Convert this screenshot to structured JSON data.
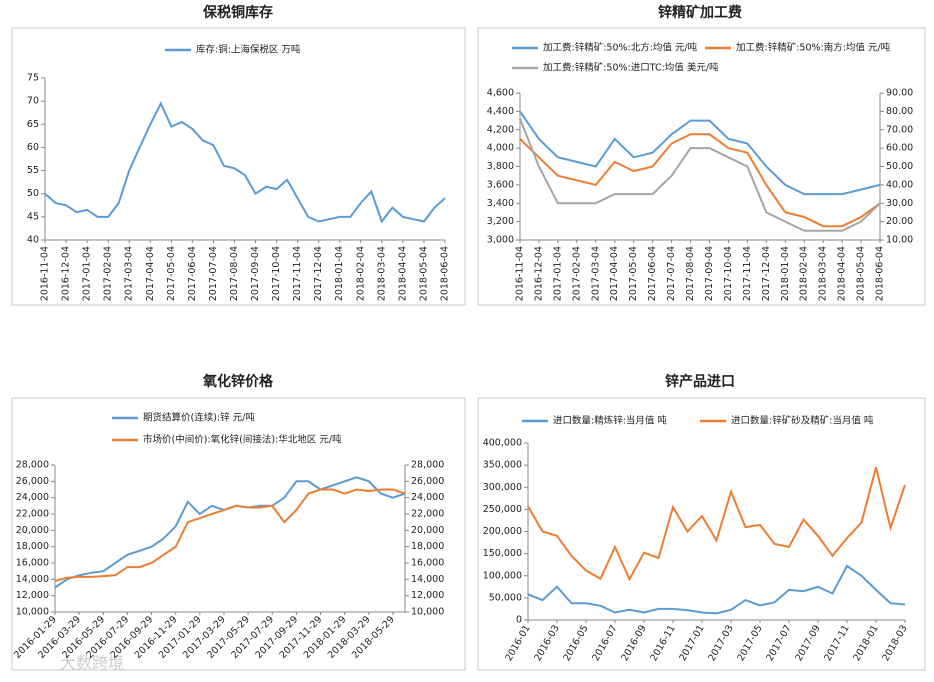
{
  "chart_data": [
    {
      "type": "line",
      "title": "保税铜库存",
      "categories": [
        "2016-11-04",
        null,
        "2016-12-04",
        null,
        "2017-01-04",
        null,
        "2017-02-04",
        null,
        "2017-03-04",
        null,
        "2017-04-04",
        null,
        "2017-05-04",
        null,
        "2017-06-04",
        null,
        "2017-07-04",
        null,
        "2017-08-04",
        null,
        "2017-09-04",
        null,
        "2017-10-04",
        null,
        "2017-11-04",
        null,
        "2017-12-04",
        null,
        "2018-01-04",
        null,
        "2018-02-04",
        null,
        "2018-03-04",
        null,
        "2018-04-04",
        null,
        "2018-05-04",
        null,
        "2018-06-04"
      ],
      "series": [
        {
          "name": "库存:铜:上海保税区 万吨",
          "color": "#5b9bd5",
          "values": [
            50,
            48,
            47.5,
            46,
            46.5,
            45,
            45,
            48,
            55,
            60,
            65,
            69.5,
            64.5,
            65.5,
            64,
            61.5,
            60.5,
            56,
            55.5,
            54,
            50,
            51.5,
            51,
            53,
            49,
            45,
            44,
            44.5,
            45,
            45,
            48,
            50.5,
            44,
            47,
            45,
            44.5,
            44,
            47,
            49
          ]
        }
      ],
      "ylim": [
        40,
        75
      ],
      "yticks": [
        40,
        45,
        50,
        55,
        60,
        65,
        70,
        75
      ]
    },
    {
      "type": "line",
      "title": "锌精矿加工费",
      "categories": [
        "2016-11-04",
        "2016-12-04",
        "2017-01-04",
        "2017-02-04",
        "2017-03-04",
        "2017-04-04",
        "2017-05-04",
        "2017-06-04",
        "2017-07-04",
        "2017-08-04",
        "2017-09-04",
        "2017-10-04",
        "2017-11-04",
        "2017-12-04",
        "2018-01-04",
        "2018-02-04",
        "2018-03-04",
        "2018-04-04",
        "2018-05-04",
        "2018-06-04"
      ],
      "series": [
        {
          "name": "加工费:锌精矿:50%:北方:均值 元/吨",
          "color": "#5b9bd5",
          "values": [
            4400,
            4100,
            3900,
            3850,
            3800,
            4100,
            3900,
            3950,
            4150,
            4300,
            4300,
            4100,
            4050,
            3800,
            3600,
            3500,
            3500,
            3500,
            3550,
            3600
          ]
        },
        {
          "name": "加工费:锌精矿:50%:南方:均值 元/吨",
          "color": "#ed7d31",
          "values": [
            4100,
            3900,
            3700,
            3650,
            3600,
            3850,
            3750,
            3800,
            4050,
            4150,
            4150,
            4000,
            3950,
            3600,
            3300,
            3250,
            3150,
            3150,
            3250,
            3400
          ]
        },
        {
          "name": "加工费:锌精矿:50%:进口TC:均值 美元/吨",
          "color": "#a5a5a5",
          "axis": "y2",
          "values": [
            76,
            50,
            30,
            30,
            30,
            35,
            35,
            35,
            45,
            60,
            60,
            55,
            50,
            25,
            20,
            15,
            15,
            15,
            20,
            30
          ]
        }
      ],
      "ylim": [
        3000,
        4600
      ],
      "yticks": [
        {
          "value": 3000,
          "label": "3,000"
        },
        {
          "value": 3200,
          "label": "3,200"
        },
        {
          "value": 3400,
          "label": "3,400"
        },
        {
          "value": 3600,
          "label": "3,600"
        },
        {
          "value": 3800,
          "label": "3,800"
        },
        {
          "value": 4000,
          "label": "4,000"
        },
        {
          "value": 4200,
          "label": "4,200"
        },
        {
          "value": 4400,
          "label": "4,400"
        },
        {
          "value": 4600,
          "label": "4,600"
        }
      ],
      "y2lim": [
        10,
        90
      ],
      "y2ticks": [
        {
          "value": 10,
          "label": "10.00"
        },
        {
          "value": 20,
          "label": "20.00"
        },
        {
          "value": 30,
          "label": "30.00"
        },
        {
          "value": 40,
          "label": "40.00"
        },
        {
          "value": 50,
          "label": "50.00"
        },
        {
          "value": 60,
          "label": "60.00"
        },
        {
          "value": 70,
          "label": "70.00"
        },
        {
          "value": 80,
          "label": "80.00"
        },
        {
          "value": 90,
          "label": "90.00"
        }
      ]
    },
    {
      "type": "line",
      "title": "氧化锌价格",
      "categories": [
        "2016-01-29",
        null,
        "2016-03-29",
        null,
        "2016-05-29",
        null,
        "2016-07-29",
        null,
        "2016-09-29",
        null,
        "2016-11-29",
        null,
        "2017-01-29",
        null,
        "2017-03-29",
        null,
        "2017-05-29",
        null,
        "2017-07-29",
        null,
        "2017-09-29",
        null,
        "2017-11-29",
        null,
        "2018-01-29",
        null,
        "2018-03-29",
        null,
        "2018-05-29",
        null
      ],
      "series": [
        {
          "name": "期货结算价(连续):锌 元/吨",
          "color": "#5b9bd5",
          "values": [
            13000,
            14000,
            14500,
            14800,
            15000,
            16000,
            17000,
            17500,
            18000,
            19000,
            20500,
            23500,
            22000,
            23000,
            22500,
            23000,
            22800,
            23000,
            23000,
            24000,
            26000,
            26000,
            25000,
            25500,
            26000,
            26500,
            26000,
            24500,
            24000,
            24500
          ]
        },
        {
          "name": "市场价(中间价):氧化锌(间接法):华北地区 元/吨",
          "color": "#ed7d31",
          "values": [
            13800,
            14200,
            14300,
            14300,
            14400,
            14500,
            15500,
            15500,
            16000,
            17000,
            18000,
            21000,
            21500,
            22000,
            22500,
            23000,
            22800,
            22800,
            23000,
            21000,
            22500,
            24500,
            25000,
            25000,
            24500,
            25000,
            24800,
            25000,
            25000,
            24500
          ]
        }
      ],
      "ylim": [
        10000,
        28000
      ],
      "yticks": [
        {
          "value": 10000,
          "label": "10,000"
        },
        {
          "value": 12000,
          "label": "12,000"
        },
        {
          "value": 14000,
          "label": "14,000"
        },
        {
          "value": 16000,
          "label": "16,000"
        },
        {
          "value": 18000,
          "label": "18,000"
        },
        {
          "value": 20000,
          "label": "20,000"
        },
        {
          "value": 22000,
          "label": "22,000"
        },
        {
          "value": 24000,
          "label": "24,000"
        },
        {
          "value": 26000,
          "label": "26,000"
        },
        {
          "value": 28000,
          "label": "28,000"
        }
      ],
      "y2lim": [
        10000,
        28000
      ],
      "y2ticks": [
        {
          "value": 10000,
          "label": "10,000"
        },
        {
          "value": 12000,
          "label": "12,000"
        },
        {
          "value": 14000,
          "label": "14,000"
        },
        {
          "value": 16000,
          "label": "16,000"
        },
        {
          "value": 18000,
          "label": "18,000"
        },
        {
          "value": 20000,
          "label": "20,000"
        },
        {
          "value": 22000,
          "label": "22,000"
        },
        {
          "value": 24000,
          "label": "24,000"
        },
        {
          "value": 26000,
          "label": "26,000"
        },
        {
          "value": 28000,
          "label": "28,000"
        }
      ]
    },
    {
      "type": "line",
      "title": "锌产品进口",
      "categories": [
        "2016-01",
        null,
        "2016-03",
        null,
        "2016-05",
        null,
        "2016-07",
        null,
        "2016-09",
        null,
        "2016-11",
        null,
        "2017-01",
        null,
        "2017-03",
        null,
        "2017-05",
        null,
        "2017-07",
        null,
        "2017-09",
        null,
        "2017-11",
        null,
        "2018-01",
        null,
        "2018-03"
      ],
      "series": [
        {
          "name": "进口数量:精炼锌:当月值 吨",
          "color": "#5b9bd5",
          "values": [
            58000,
            45000,
            75000,
            38000,
            38000,
            32000,
            17000,
            23000,
            17000,
            25000,
            25000,
            22000,
            17000,
            15000,
            23000,
            45000,
            33000,
            40000,
            68000,
            65000,
            75000,
            60000,
            122000,
            100000,
            68000,
            38000,
            35000
          ]
        },
        {
          "name": "进口数量:锌矿砂及精矿:当月值 吨",
          "color": "#ed7d31",
          "values": [
            257000,
            200000,
            190000,
            145000,
            112000,
            93000,
            165000,
            92000,
            152000,
            140000,
            255000,
            200000,
            235000,
            180000,
            290000,
            210000,
            215000,
            172000,
            165000,
            227000,
            190000,
            145000,
            185000,
            220000,
            345000,
            208000,
            305000
          ]
        }
      ],
      "ylim": [
        0,
        400000
      ],
      "yticks": [
        0,
        {
          "value": 50000,
          "label": "50,000"
        },
        {
          "value": 100000,
          "label": "100,000"
        },
        {
          "value": 150000,
          "label": "150,000"
        },
        {
          "value": 200000,
          "label": "200,000"
        },
        {
          "value": 250000,
          "label": "250,000"
        },
        {
          "value": 300000,
          "label": "300,000"
        },
        {
          "value": 350000,
          "label": "350,000"
        },
        {
          "value": 400000,
          "label": "400,000"
        }
      ]
    }
  ],
  "watermark": "大数跨境"
}
